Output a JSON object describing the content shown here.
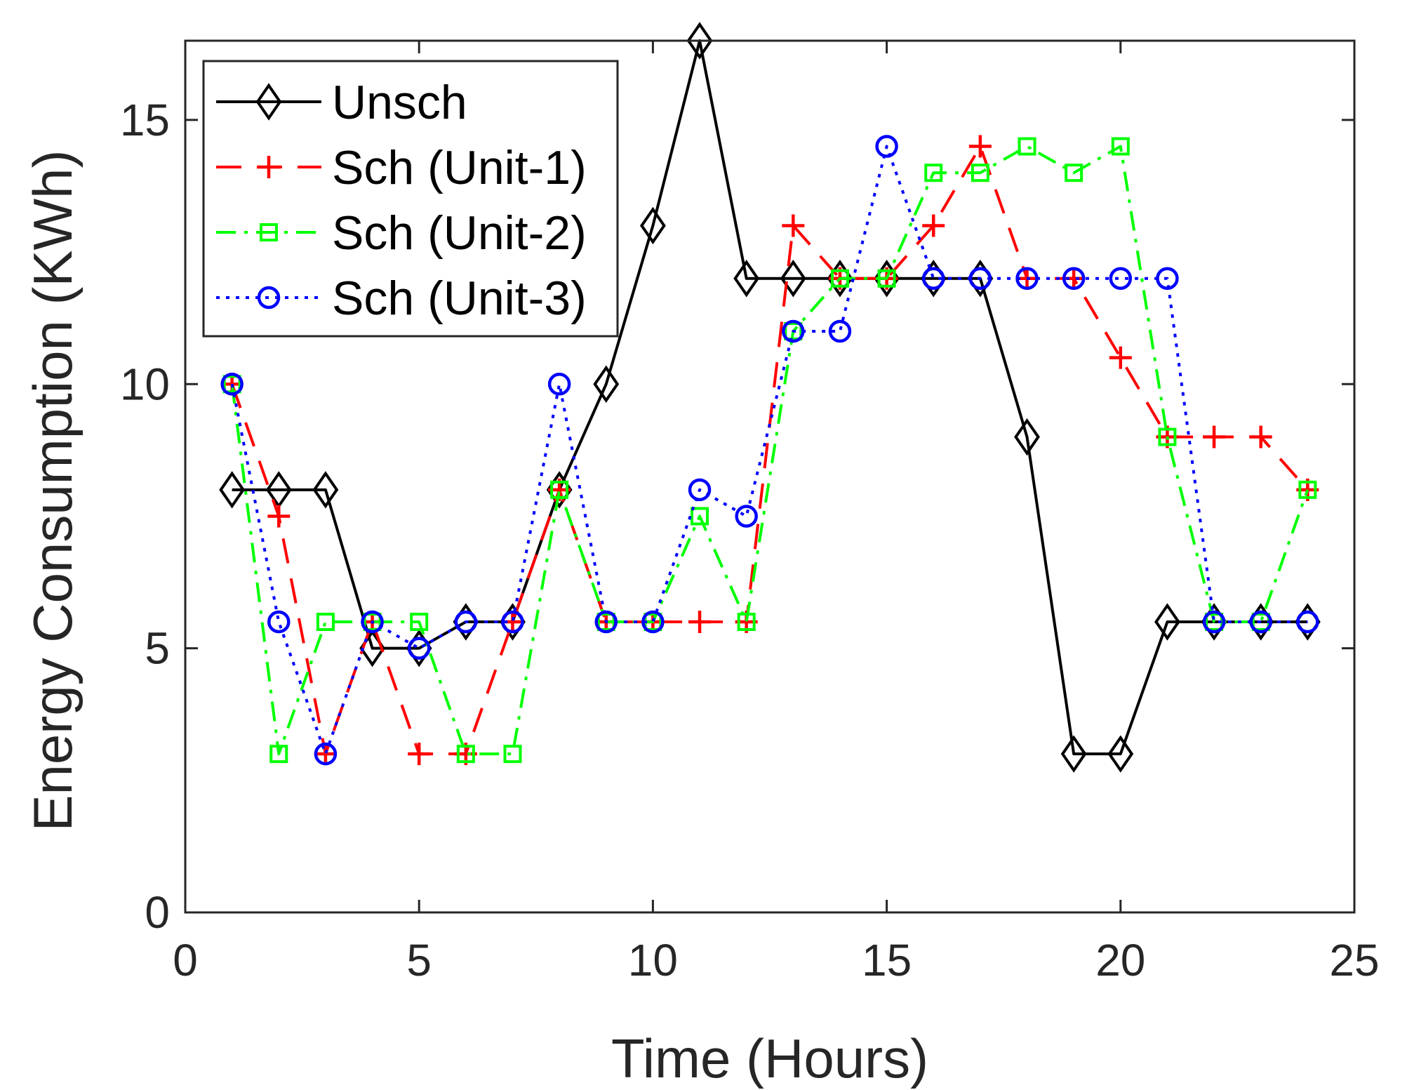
{
  "chart_data": {
    "type": "line",
    "title": "",
    "xlabel": "Time (Hours)",
    "ylabel": "Energy Consumption (KWh)",
    "xlim": [
      0,
      25
    ],
    "ylim": [
      0,
      16.5
    ],
    "xticks": [
      0,
      5,
      10,
      15,
      20,
      25
    ],
    "yticks": [
      0,
      5,
      10,
      15
    ],
    "grid": false,
    "legend_position": "top-left",
    "x": [
      1,
      2,
      3,
      4,
      5,
      6,
      7,
      8,
      9,
      10,
      11,
      12,
      13,
      14,
      15,
      16,
      17,
      18,
      19,
      20,
      21,
      22,
      23,
      24
    ],
    "series": [
      {
        "name": "Unsch",
        "color": "#000000",
        "line_style": "solid",
        "marker": "diamond",
        "values": [
          8,
          8,
          8,
          5,
          5,
          5.5,
          5.5,
          8,
          10,
          13,
          16.5,
          12,
          12,
          12,
          12,
          12,
          12,
          9,
          3,
          3,
          5.5,
          5.5,
          5.5,
          5.5
        ]
      },
      {
        "name": "Sch (Unit-1)",
        "color": "#ff0000",
        "line_style": "dashed",
        "marker": "plus",
        "values": [
          10,
          7.5,
          3,
          5.5,
          3,
          3,
          5.5,
          8,
          5.5,
          5.5,
          5.5,
          5.5,
          13,
          12,
          12,
          13,
          14.5,
          12,
          12,
          10.5,
          9,
          9,
          9,
          8
        ]
      },
      {
        "name": "Sch (Unit-2)",
        "color": "#00ff00",
        "line_style": "dashdot",
        "marker": "square",
        "values": [
          10,
          3,
          5.5,
          5.5,
          5.5,
          3,
          3,
          8,
          5.5,
          5.5,
          7.5,
          5.5,
          11,
          12,
          12,
          14,
          14,
          14.5,
          14,
          14.5,
          9,
          5.5,
          5.5,
          8
        ]
      },
      {
        "name": "Sch (Unit-3)",
        "color": "#0000ff",
        "line_style": "dotted",
        "marker": "circle",
        "values": [
          10,
          5.5,
          3,
          5.5,
          5,
          5.5,
          5.5,
          10,
          5.5,
          5.5,
          8,
          7.5,
          11,
          11,
          14.5,
          12,
          12,
          12,
          12,
          12,
          12,
          5.5,
          5.5,
          5.5
        ]
      }
    ]
  }
}
